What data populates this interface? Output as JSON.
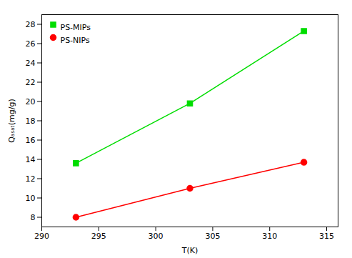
{
  "chart_data": {
    "type": "line",
    "xlabel": "T(K)",
    "ylabel": "Qₐₛₐₜ(mg/g)",
    "x": [
      293,
      303,
      313
    ],
    "series": [
      {
        "name": "PS-MIPs",
        "color": "#00DD00",
        "marker": "square",
        "values": [
          13.6,
          19.8,
          27.3
        ]
      },
      {
        "name": "PS-NIPs",
        "color": "#FF0000",
        "marker": "circle",
        "values": [
          8.0,
          11.0,
          13.7
        ]
      }
    ],
    "xlim": [
      290,
      316
    ],
    "ylim": [
      7,
      29
    ],
    "xticks": [
      290,
      295,
      300,
      305,
      310,
      315
    ],
    "yticks": [
      8,
      10,
      12,
      14,
      16,
      18,
      20,
      22,
      24,
      26,
      28
    ],
    "grid": false,
    "legend": "upper left"
  }
}
